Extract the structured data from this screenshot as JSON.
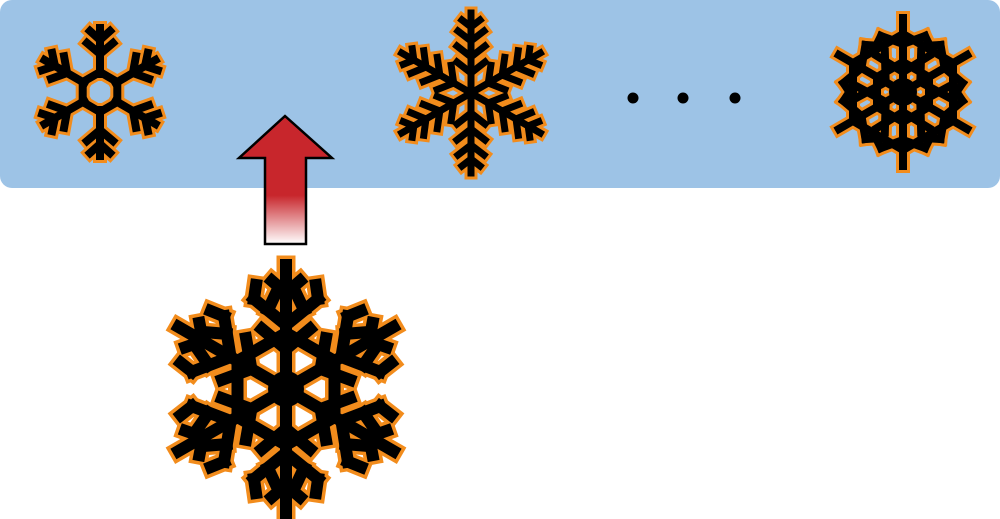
{
  "colors": {
    "panel": "#9dc3e6",
    "outline": "#f28c1c",
    "ink": "#000000",
    "arrow_top": "#c8262c",
    "arrow_bottom": "#ffffff",
    "background": "#ffffff"
  },
  "icons": {
    "candidate_1": "hexagon-snowflake-icon",
    "candidate_2": "fern-snowflake-icon",
    "candidate_n": "dense-star-snowflake-icon",
    "query": "large-dendrite-snowflake-icon",
    "arrow": "up-arrow-icon",
    "ellipsis": "ellipsis-dots"
  }
}
